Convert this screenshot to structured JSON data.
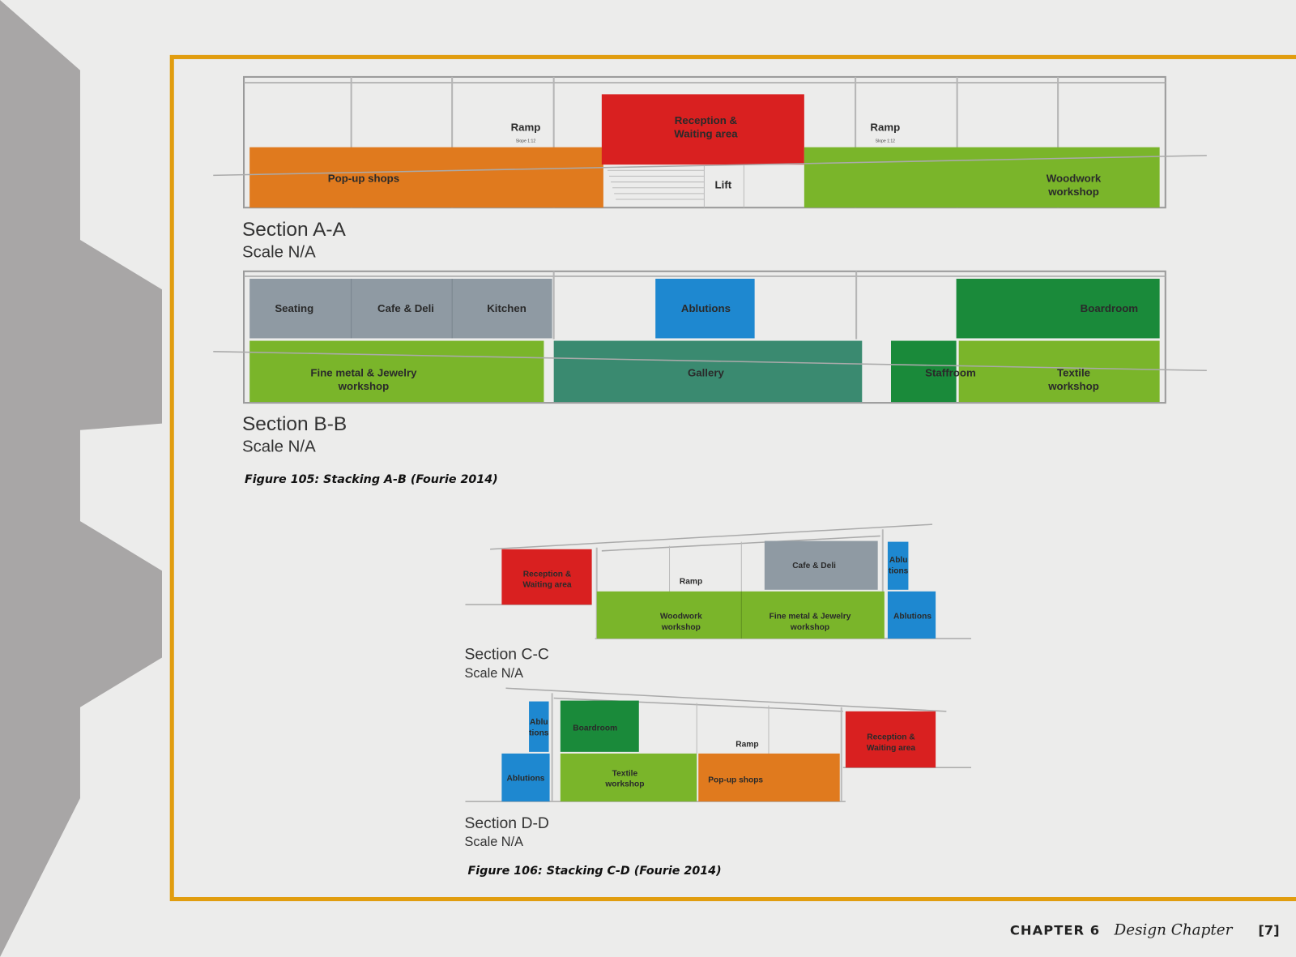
{
  "colors": {
    "frame": "#e19d0f",
    "side_shape": "#a8a6a6",
    "orange": "#e07a1e",
    "red": "#d92020",
    "green": "#7ab52a",
    "gray": "#8f9aa3",
    "blue": "#1e88d0",
    "dark_green": "#1a8a3a",
    "teal": "#3a8a70"
  },
  "section_aa": {
    "title": "Section A-A",
    "scale": "Scale N/A",
    "popup": "Pop-up shops",
    "reception": [
      "Reception &",
      "Waiting area"
    ],
    "woodwork": [
      "Woodwork",
      "workshop"
    ],
    "lift": "Lift",
    "ramp1": "Ramp",
    "ramp2": "Ramp",
    "slope": "Slope 1:12"
  },
  "section_bb": {
    "title": "Section B-B",
    "scale": "Scale N/A",
    "seating": "Seating",
    "cafe": "Cafe & Deli",
    "kitchen": "Kitchen",
    "ablutions": "Ablutions",
    "boardroom": "Boardroom",
    "finemetal": [
      "Fine metal & Jewelry",
      "workshop"
    ],
    "gallery": "Gallery",
    "staffroom": "Staffroom",
    "textile": [
      "Textile",
      "workshop"
    ]
  },
  "figure_105": "Figure 105: Stacking A-B (Fourie 2014)",
  "section_cc": {
    "title": "Section C-C",
    "scale": "Scale N/A",
    "reception": [
      "Reception &",
      "Waiting area"
    ],
    "cafe": "Cafe & Deli",
    "ablutions_upper": [
      "Ablu",
      "tions"
    ],
    "ramp": "Ramp",
    "woodwork": [
      "Woodwork",
      "workshop"
    ],
    "finemetal": [
      "Fine metal & Jewelry",
      "workshop"
    ],
    "ablutions": "Ablutions"
  },
  "section_dd": {
    "title": "Section D-D",
    "scale": "Scale N/A",
    "ablutions_upper": [
      "Ablu",
      "tions"
    ],
    "boardroom": "Boardroom",
    "ablutions": "Ablutions",
    "textile": [
      "Textile",
      "workshop"
    ],
    "ramp": "Ramp",
    "popup": "Pop-up shops",
    "reception": [
      "Reception &",
      "Waiting area"
    ]
  },
  "figure_106": "Figure 106: Stacking C-D (Fourie 2014)",
  "footer": {
    "chapter": "CHAPTER 6",
    "title": "Design Chapter",
    "page": "[7]"
  }
}
